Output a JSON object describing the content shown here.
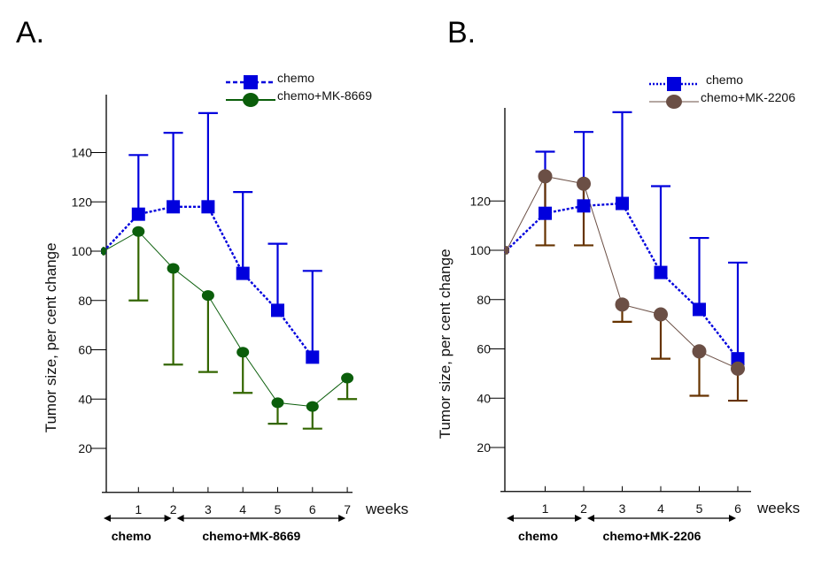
{
  "chart_data": [
    {
      "type": "line",
      "panel_label": "A.",
      "title": "",
      "xlabel": "weeks",
      "ylabel": "Tumor size, per cent change",
      "ylim": [
        0,
        160
      ],
      "xlim": [
        0,
        7
      ],
      "yticks": [
        20,
        40,
        60,
        80,
        100,
        120,
        140
      ],
      "xticks": [
        1,
        2,
        3,
        4,
        5,
        6,
        7
      ],
      "grid": false,
      "legend_position": "top-right",
      "series": [
        {
          "name": "chemo",
          "color": "#0000dd",
          "marker": "square",
          "line": "dotted",
          "x": [
            0,
            1,
            2,
            3,
            4,
            5,
            6
          ],
          "values": [
            100,
            115,
            118,
            118,
            91,
            76,
            57
          ],
          "error_upper": [
            null,
            139,
            148,
            156,
            124,
            103,
            92
          ]
        },
        {
          "name": "chemo+MK-8669",
          "color": "#0b5e0b",
          "error_color": "#336600",
          "marker": "circle",
          "line": "solid",
          "x": [
            0,
            1,
            2,
            3,
            4,
            5,
            6,
            7
          ],
          "values": [
            100,
            108,
            93,
            82,
            59,
            38.5,
            37,
            48.5
          ],
          "error_lower": [
            null,
            80,
            54,
            51,
            42.5,
            30,
            28,
            40
          ]
        }
      ],
      "phases": [
        {
          "label": "chemo",
          "from": 0,
          "to": 2
        },
        {
          "label": "chemo+MK-8669",
          "from": 2,
          "to": 7
        }
      ]
    },
    {
      "type": "line",
      "panel_label": "B.",
      "title": "",
      "xlabel": "weeks",
      "ylabel": "Tumor size, per cent change",
      "ylim": [
        0,
        160
      ],
      "xlim": [
        0,
        6
      ],
      "yticks": [
        20,
        40,
        60,
        80,
        100,
        120
      ],
      "xticks": [
        1,
        2,
        3,
        4,
        5,
        6
      ],
      "grid": false,
      "legend_position": "top-right",
      "series": [
        {
          "name": "chemo",
          "color": "#0000dd",
          "marker": "square",
          "line": "dotted",
          "x": [
            0,
            1,
            2,
            3,
            4,
            5,
            6
          ],
          "values": [
            100,
            115,
            118,
            119,
            91,
            76,
            56
          ],
          "error_upper": [
            null,
            140,
            148,
            156,
            126,
            105,
            95
          ]
        },
        {
          "name": "chemo+MK-2206",
          "color": "#6b4f45",
          "error_color": "#663300",
          "marker": "circle",
          "line": "solid",
          "x": [
            0,
            1,
            2,
            3,
            4,
            5,
            6
          ],
          "values": [
            100,
            130,
            127,
            78,
            74,
            59,
            52
          ],
          "error_lower": [
            null,
            102,
            102,
            71,
            56,
            41,
            39
          ]
        }
      ],
      "phases": [
        {
          "label": "chemo",
          "from": 0,
          "to": 2
        },
        {
          "label": "chemo+MK-2206",
          "from": 2,
          "to": 6
        }
      ]
    }
  ]
}
